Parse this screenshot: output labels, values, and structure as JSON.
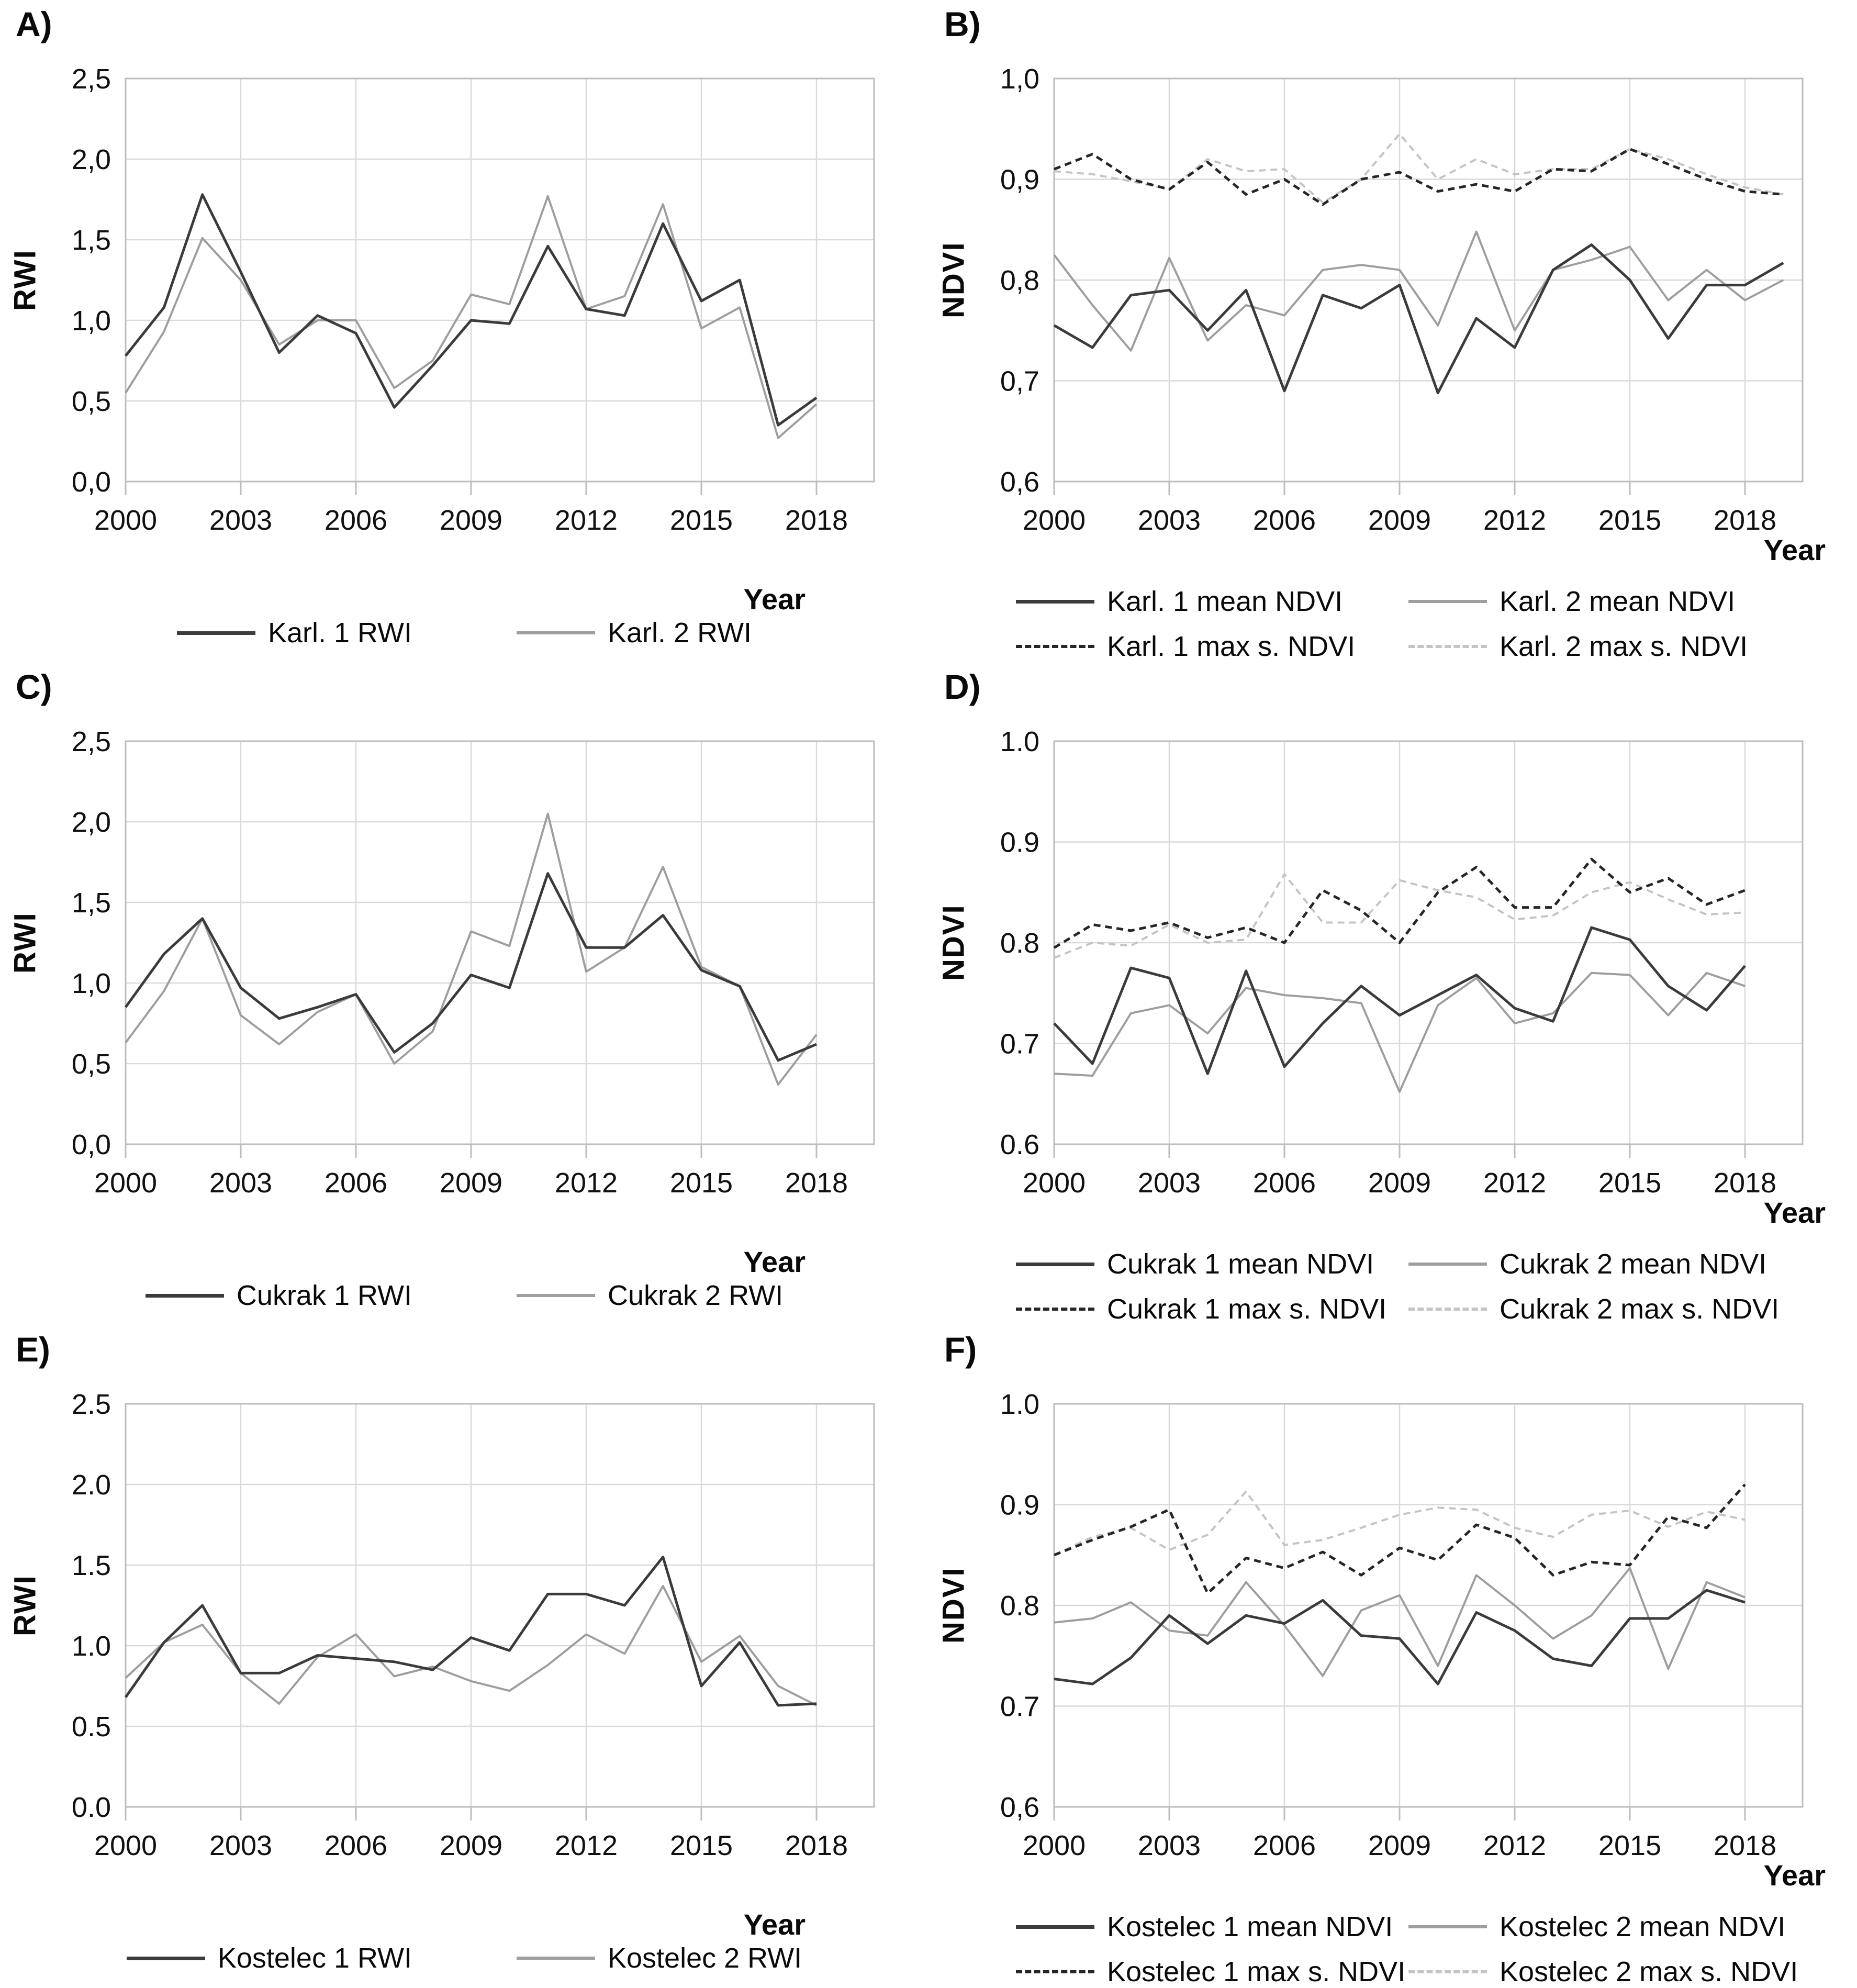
{
  "colors": {
    "series_dark": "#3b3b3b",
    "series_gray": "#9e9e9e",
    "series_dark_dashed": "#262626",
    "series_light_dashed": "#c4c4c4",
    "gridline": "#d9d9d9",
    "plot_border": "#bdbdbd",
    "text": "#111111"
  },
  "chart_data": [
    {
      "panel_label": "A)",
      "type": "line",
      "title": "",
      "ylabel": "RWI",
      "xlabel": "Year",
      "ylim": [
        0.0,
        2.5
      ],
      "xlim": [
        2000,
        2019.5
      ],
      "grid": true,
      "legend_position": "bottom",
      "y_ticks": [
        2.5,
        2.0,
        1.5,
        1.0,
        0.5,
        0.0
      ],
      "y_tick_labels": [
        "2,5",
        "2,0",
        "1,5",
        "1,0",
        "0,5",
        "0,0"
      ],
      "x_ticks": [
        2000,
        2003,
        2006,
        2009,
        2012,
        2015,
        2018
      ],
      "x_tick_labels": [
        "2000",
        "2003",
        "2006",
        "2009",
        "2012",
        "2015",
        "2018"
      ],
      "x": [
        2000,
        2001,
        2002,
        2003,
        2004,
        2005,
        2006,
        2007,
        2008,
        2009,
        2010,
        2011,
        2012,
        2013,
        2014,
        2015,
        2016,
        2017,
        2018
      ],
      "series": [
        {
          "name": "Karl. 1 RWI",
          "line": "solid",
          "color": "#3b3b3b",
          "width": 5,
          "values": [
            0.78,
            1.08,
            1.78,
            1.3,
            0.8,
            1.03,
            0.92,
            0.46,
            0.72,
            1.0,
            0.98,
            1.46,
            1.07,
            1.03,
            1.6,
            1.12,
            1.25,
            0.35,
            0.52
          ]
        },
        {
          "name": "Karl. 2 RWI",
          "line": "solid",
          "color": "#9e9e9e",
          "width": 4,
          "values": [
            0.55,
            0.93,
            1.51,
            1.25,
            0.85,
            1.0,
            1.0,
            0.58,
            0.75,
            1.16,
            1.1,
            1.77,
            1.07,
            1.15,
            1.72,
            0.95,
            1.08,
            0.27,
            0.48
          ]
        }
      ]
    },
    {
      "panel_label": "B)",
      "type": "line",
      "title": "",
      "ylabel": "NDVI",
      "xlabel": "Year",
      "ylim": [
        0.6,
        1.0
      ],
      "xlim": [
        2000,
        2019.5
      ],
      "grid": true,
      "legend_position": "bottom",
      "y_ticks": [
        1.0,
        0.9,
        0.8,
        0.7,
        0.6
      ],
      "y_tick_labels": [
        "1,0",
        "0,9",
        "0,8",
        "0,7",
        "0,6"
      ],
      "x_ticks": [
        2000,
        2003,
        2006,
        2009,
        2012,
        2015,
        2018
      ],
      "x_tick_labels": [
        "2000",
        "2003",
        "2006",
        "2009",
        "2012",
        "2015",
        "2018"
      ],
      "x": [
        2000,
        2001,
        2002,
        2003,
        2004,
        2005,
        2006,
        2007,
        2008,
        2009,
        2010,
        2011,
        2012,
        2013,
        2014,
        2015,
        2016,
        2017,
        2018,
        2019
      ],
      "series": [
        {
          "name": "Karl. 1 mean NDVI",
          "line": "solid",
          "color": "#3b3b3b",
          "width": 5,
          "values": [
            0.755,
            0.733,
            0.785,
            0.79,
            0.75,
            0.79,
            0.69,
            0.785,
            0.772,
            0.795,
            0.688,
            0.762,
            0.733,
            0.81,
            0.835,
            0.8,
            0.742,
            0.795,
            0.795,
            0.817
          ]
        },
        {
          "name": "Karl. 2 mean NDVI",
          "line": "solid",
          "color": "#9e9e9e",
          "width": 4,
          "values": [
            0.825,
            0.775,
            0.73,
            0.822,
            0.74,
            0.775,
            0.765,
            0.81,
            0.815,
            0.81,
            0.755,
            0.848,
            0.75,
            0.81,
            0.82,
            0.833,
            0.78,
            0.81,
            0.78,
            0.8
          ]
        },
        {
          "name": "Karl. 1 max s. NDVI",
          "line": "dashed",
          "color": "#262626",
          "width": 5,
          "values": [
            0.91,
            0.925,
            0.9,
            0.89,
            0.917,
            0.885,
            0.9,
            0.875,
            0.9,
            0.907,
            0.888,
            0.895,
            0.888,
            0.91,
            0.908,
            0.93,
            0.915,
            0.9,
            0.888,
            0.885
          ]
        },
        {
          "name": "Karl. 2 max s. NDVI",
          "line": "dashed",
          "color": "#c4c4c4",
          "width": 4,
          "values": [
            0.908,
            0.905,
            0.898,
            0.89,
            0.92,
            0.908,
            0.91,
            0.877,
            0.9,
            0.945,
            0.9,
            0.92,
            0.905,
            0.91,
            0.91,
            0.93,
            0.92,
            0.905,
            0.892,
            0.885
          ]
        }
      ]
    },
    {
      "panel_label": "C)",
      "type": "line",
      "title": "",
      "ylabel": "RWI",
      "xlabel": "Year",
      "ylim": [
        0.0,
        2.5
      ],
      "xlim": [
        2000,
        2019.5
      ],
      "grid": true,
      "legend_position": "bottom",
      "y_ticks": [
        2.5,
        2.0,
        1.5,
        1.0,
        0.5,
        0.0
      ],
      "y_tick_labels": [
        "2,5",
        "2,0",
        "1,5",
        "1,0",
        "0,5",
        "0,0"
      ],
      "x_ticks": [
        2000,
        2003,
        2006,
        2009,
        2012,
        2015,
        2018
      ],
      "x_tick_labels": [
        "2000",
        "2003",
        "2006",
        "2009",
        "2012",
        "2015",
        "2018"
      ],
      "x": [
        2000,
        2001,
        2002,
        2003,
        2004,
        2005,
        2006,
        2007,
        2008,
        2009,
        2010,
        2011,
        2012,
        2013,
        2014,
        2015,
        2016,
        2017,
        2018
      ],
      "series": [
        {
          "name": "Cukrak 1 RWI",
          "line": "solid",
          "color": "#3b3b3b",
          "width": 5,
          "values": [
            0.85,
            1.18,
            1.4,
            0.97,
            0.78,
            0.85,
            0.93,
            0.57,
            0.75,
            1.05,
            0.97,
            1.68,
            1.22,
            1.22,
            1.42,
            1.08,
            0.98,
            0.52,
            0.62
          ]
        },
        {
          "name": "Cukrak 2 RWI",
          "line": "solid",
          "color": "#9e9e9e",
          "width": 4,
          "values": [
            0.63,
            0.95,
            1.4,
            0.8,
            0.62,
            0.82,
            0.93,
            0.5,
            0.7,
            1.32,
            1.23,
            2.05,
            1.07,
            1.22,
            1.72,
            1.1,
            0.98,
            0.37,
            0.68
          ]
        }
      ]
    },
    {
      "panel_label": "D)",
      "type": "line",
      "title": "",
      "ylabel": "NDVI",
      "xlabel": "Year",
      "ylim": [
        0.6,
        1.0
      ],
      "xlim": [
        2000,
        2019.5
      ],
      "grid": true,
      "legend_position": "bottom",
      "y_ticks": [
        1.0,
        0.9,
        0.8,
        0.7,
        0.6
      ],
      "y_tick_labels": [
        "1.0",
        "0.9",
        "0.8",
        "0.7",
        "0.6"
      ],
      "x_ticks": [
        2000,
        2003,
        2006,
        2009,
        2012,
        2015,
        2018
      ],
      "x_tick_labels": [
        "2000",
        "2003",
        "2006",
        "2009",
        "2012",
        "2015",
        "2018"
      ],
      "x": [
        2000,
        2001,
        2002,
        2003,
        2004,
        2005,
        2006,
        2007,
        2008,
        2009,
        2010,
        2011,
        2012,
        2013,
        2014,
        2015,
        2016,
        2017,
        2018
      ],
      "series": [
        {
          "name": "Cukrak 1 mean NDVI",
          "line": "solid",
          "color": "#3b3b3b",
          "width": 5,
          "values": [
            0.72,
            0.68,
            0.775,
            0.765,
            0.67,
            0.772,
            0.677,
            0.72,
            0.757,
            0.728,
            0.748,
            0.768,
            0.735,
            0.722,
            0.815,
            0.803,
            0.757,
            0.733,
            0.777
          ]
        },
        {
          "name": "Cukrak 2 mean NDVI",
          "line": "solid",
          "color": "#9e9e9e",
          "width": 4,
          "values": [
            0.67,
            0.668,
            0.73,
            0.738,
            0.71,
            0.755,
            0.748,
            0.745,
            0.74,
            0.652,
            0.738,
            0.765,
            0.72,
            0.73,
            0.77,
            0.768,
            0.728,
            0.77,
            0.757
          ]
        },
        {
          "name": "Cukrak 1 max s. NDVI",
          "line": "dashed",
          "color": "#262626",
          "width": 5,
          "values": [
            0.795,
            0.818,
            0.812,
            0.82,
            0.805,
            0.815,
            0.8,
            0.852,
            0.832,
            0.8,
            0.85,
            0.875,
            0.835,
            0.835,
            0.883,
            0.85,
            0.864,
            0.838,
            0.852
          ]
        },
        {
          "name": "Cukrak 2 max s. NDVI",
          "line": "dashed",
          "color": "#c4c4c4",
          "width": 4,
          "values": [
            0.785,
            0.8,
            0.797,
            0.818,
            0.8,
            0.803,
            0.868,
            0.82,
            0.82,
            0.862,
            0.852,
            0.845,
            0.823,
            0.827,
            0.85,
            0.86,
            0.843,
            0.828,
            0.83
          ]
        }
      ]
    },
    {
      "panel_label": "E)",
      "type": "line",
      "title": "",
      "ylabel": "RWI",
      "xlabel": "Year",
      "ylim": [
        0.0,
        2.5
      ],
      "xlim": [
        2000,
        2019.5
      ],
      "grid": true,
      "legend_position": "bottom",
      "y_ticks": [
        2.5,
        2.0,
        1.5,
        1.0,
        0.5,
        0.0
      ],
      "y_tick_labels": [
        "2.5",
        "2.0",
        "1.5",
        "1.0",
        "0.5",
        "0.0"
      ],
      "x_ticks": [
        2000,
        2003,
        2006,
        2009,
        2012,
        2015,
        2018
      ],
      "x_tick_labels": [
        "2000",
        "2003",
        "2006",
        "2009",
        "2012",
        "2015",
        "2018"
      ],
      "x": [
        2000,
        2001,
        2002,
        2003,
        2004,
        2005,
        2006,
        2007,
        2008,
        2009,
        2010,
        2011,
        2012,
        2013,
        2014,
        2015,
        2016,
        2017,
        2018
      ],
      "series": [
        {
          "name": "Kostelec 1 RWI",
          "line": "solid",
          "color": "#3b3b3b",
          "width": 5,
          "values": [
            0.68,
            1.02,
            1.25,
            0.83,
            0.83,
            0.94,
            0.92,
            0.9,
            0.85,
            1.05,
            0.97,
            1.32,
            1.32,
            1.25,
            1.55,
            0.75,
            1.02,
            0.63,
            0.64
          ]
        },
        {
          "name": "Kostelec 2 RWI",
          "line": "solid",
          "color": "#9e9e9e",
          "width": 4,
          "values": [
            0.8,
            1.02,
            1.13,
            0.83,
            0.64,
            0.93,
            1.07,
            0.81,
            0.87,
            0.78,
            0.72,
            0.88,
            1.07,
            0.95,
            1.37,
            0.9,
            1.06,
            0.75,
            0.63
          ]
        }
      ]
    },
    {
      "panel_label": "F)",
      "type": "line",
      "title": "",
      "ylabel": "NDVI",
      "xlabel": "Year",
      "ylim": [
        0.6,
        1.0
      ],
      "xlim": [
        2000,
        2019.5
      ],
      "grid": true,
      "legend_position": "bottom",
      "y_ticks": [
        1.0,
        0.9,
        0.8,
        0.7,
        0.6
      ],
      "y_tick_labels": [
        "1.0",
        "0.9",
        "0.8",
        "0.7",
        "0,6"
      ],
      "x_ticks": [
        2000,
        2003,
        2006,
        2009,
        2012,
        2015,
        2018
      ],
      "x_tick_labels": [
        "2000",
        "2003",
        "2006",
        "2009",
        "2012",
        "2015",
        "2018"
      ],
      "x": [
        2000,
        2001,
        2002,
        2003,
        2004,
        2005,
        2006,
        2007,
        2008,
        2009,
        2010,
        2011,
        2012,
        2013,
        2014,
        2015,
        2016,
        2017,
        2018
      ],
      "series": [
        {
          "name": "Kostelec 1 mean NDVI",
          "line": "solid",
          "color": "#3b3b3b",
          "width": 5,
          "values": [
            0.727,
            0.722,
            0.748,
            0.79,
            0.762,
            0.79,
            0.782,
            0.805,
            0.77,
            0.767,
            0.722,
            0.793,
            0.775,
            0.747,
            0.74,
            0.787,
            0.787,
            0.815,
            0.803
          ]
        },
        {
          "name": "Kostelec 2 mean NDVI",
          "line": "solid",
          "color": "#9e9e9e",
          "width": 4,
          "values": [
            0.783,
            0.787,
            0.803,
            0.775,
            0.77,
            0.823,
            0.78,
            0.73,
            0.795,
            0.81,
            0.74,
            0.83,
            0.8,
            0.767,
            0.79,
            0.837,
            0.737,
            0.823,
            0.808
          ]
        },
        {
          "name": "Kostelec 1 max s. NDVI",
          "line": "dashed",
          "color": "#262626",
          "width": 5,
          "values": [
            0.85,
            0.865,
            0.878,
            0.895,
            0.812,
            0.847,
            0.837,
            0.853,
            0.83,
            0.857,
            0.845,
            0.88,
            0.867,
            0.83,
            0.843,
            0.84,
            0.888,
            0.877,
            0.92
          ]
        },
        {
          "name": "Kostelec 2 max s. NDVI",
          "line": "dashed",
          "color": "#c4c4c4",
          "width": 4,
          "values": [
            0.85,
            0.868,
            0.877,
            0.855,
            0.87,
            0.913,
            0.86,
            0.865,
            0.877,
            0.89,
            0.897,
            0.895,
            0.877,
            0.868,
            0.89,
            0.894,
            0.878,
            0.893,
            0.885
          ]
        }
      ]
    }
  ]
}
